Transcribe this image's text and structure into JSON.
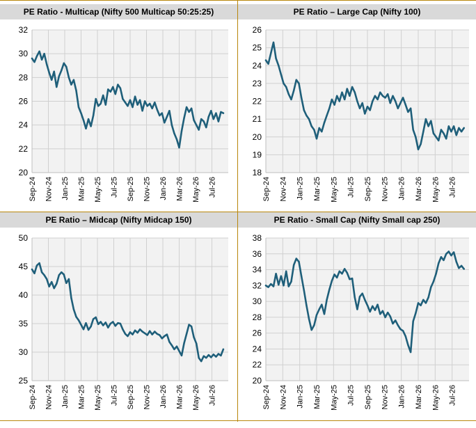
{
  "chart_data": [
    {
      "type": "line",
      "title": "PE Ratio - Multicap (Nifty 500 Multicap 50:25:25)",
      "ylim": [
        20,
        32
      ],
      "yticks": [
        20,
        22,
        24,
        26,
        28,
        30,
        32
      ],
      "xlim": [
        0,
        24
      ],
      "xticks": [
        {
          "pos": 0,
          "label": "Sep-24"
        },
        {
          "pos": 2,
          "label": "Nov-24"
        },
        {
          "pos": 4,
          "label": "Jan-25"
        },
        {
          "pos": 6,
          "label": "Mar-25"
        },
        {
          "pos": 8,
          "label": "May-25"
        },
        {
          "pos": 10,
          "label": "Jul-25"
        },
        {
          "pos": 12,
          "label": "Sep-25"
        },
        {
          "pos": 14,
          "label": "Nov-25"
        },
        {
          "pos": 16,
          "label": "Jan-26"
        },
        {
          "pos": 18,
          "label": "Mar-26"
        },
        {
          "pos": 20,
          "label": "May-26"
        },
        {
          "pos": 22,
          "label": "Jul-26"
        }
      ],
      "grid": true,
      "color": "#1f5f7a",
      "x": [
        0,
        0.3,
        0.6,
        0.9,
        1.2,
        1.5,
        1.8,
        2.1,
        2.4,
        2.7,
        3.0,
        3.3,
        3.6,
        3.9,
        4.2,
        4.5,
        4.8,
        5.1,
        5.4,
        5.7,
        6.0,
        6.3,
        6.6,
        6.9,
        7.2,
        7.5,
        7.8,
        8.1,
        8.4,
        8.7,
        9.0,
        9.3,
        9.6,
        9.9,
        10.2,
        10.5,
        10.8,
        11.1,
        11.4,
        11.7,
        12.0,
        12.3,
        12.6,
        12.9,
        13.2,
        13.5,
        13.8,
        14.1,
        14.4,
        14.7,
        15.0,
        15.3,
        15.6,
        15.9,
        16.2,
        16.5,
        16.8,
        17.1,
        17.4,
        17.7,
        18.0,
        18.3,
        18.6,
        18.9,
        19.2,
        19.5,
        19.8,
        20.1,
        20.4,
        20.7,
        21.0,
        21.3,
        21.6,
        21.9,
        22.2,
        22.5,
        22.8,
        23.1,
        23.4
      ],
      "y": [
        29.6,
        29.3,
        29.8,
        30.2,
        29.5,
        30.0,
        29.1,
        28.4,
        27.8,
        28.5,
        27.2,
        28.1,
        28.6,
        29.2,
        28.9,
        28.0,
        27.4,
        27.8,
        26.9,
        25.5,
        25.0,
        24.4,
        23.7,
        24.5,
        23.9,
        24.8,
        26.2,
        25.6,
        25.8,
        26.5,
        25.7,
        27.0,
        26.8,
        27.2,
        26.6,
        27.4,
        27.1,
        26.2,
        25.9,
        25.6,
        26.1,
        25.5,
        26.4,
        25.7,
        26.1,
        25.2,
        26.0,
        25.6,
        25.8,
        25.4,
        25.9,
        25.3,
        24.8,
        25.0,
        24.2,
        24.7,
        25.2,
        24.0,
        23.3,
        22.8,
        22.1,
        23.5,
        24.6,
        25.5,
        25.1,
        25.4,
        24.4,
        24.0,
        23.6,
        24.5,
        24.3,
        23.8,
        24.7,
        25.2,
        24.5,
        25.0,
        24.3,
        25.1,
        25.0
      ]
    },
    {
      "type": "line",
      "title": "PE Ratio – Large Cap (Nifty 100)",
      "ylim": [
        18,
        26
      ],
      "yticks": [
        18,
        19,
        20,
        21,
        22,
        23,
        24,
        25,
        26
      ],
      "xlim": [
        0,
        24
      ],
      "xticks": [
        {
          "pos": 0,
          "label": "Sep-24"
        },
        {
          "pos": 2,
          "label": "Nov-24"
        },
        {
          "pos": 4,
          "label": "Jan-25"
        },
        {
          "pos": 6,
          "label": "Mar-25"
        },
        {
          "pos": 8,
          "label": "May-25"
        },
        {
          "pos": 10,
          "label": "Jul-25"
        },
        {
          "pos": 12,
          "label": "Sep-25"
        },
        {
          "pos": 14,
          "label": "Nov-25"
        },
        {
          "pos": 16,
          "label": "Jan-26"
        },
        {
          "pos": 18,
          "label": "Mar-26"
        },
        {
          "pos": 20,
          "label": "May-26"
        },
        {
          "pos": 22,
          "label": "Jul-26"
        }
      ],
      "grid": true,
      "color": "#1f5f7a",
      "x": [
        0,
        0.3,
        0.6,
        0.9,
        1.2,
        1.5,
        1.8,
        2.1,
        2.4,
        2.7,
        3.0,
        3.3,
        3.6,
        3.9,
        4.2,
        4.5,
        4.8,
        5.1,
        5.4,
        5.7,
        6.0,
        6.3,
        6.6,
        6.9,
        7.2,
        7.5,
        7.8,
        8.1,
        8.4,
        8.7,
        9.0,
        9.3,
        9.6,
        9.9,
        10.2,
        10.5,
        10.8,
        11.1,
        11.4,
        11.7,
        12.0,
        12.3,
        12.6,
        12.9,
        13.2,
        13.5,
        13.8,
        14.1,
        14.4,
        14.7,
        15.0,
        15.3,
        15.6,
        15.9,
        16.2,
        16.5,
        16.8,
        17.1,
        17.4,
        17.7,
        18.0,
        18.3,
        18.6,
        18.9,
        19.2,
        19.5,
        19.8,
        20.1,
        20.4,
        20.7,
        21.0,
        21.3,
        21.6,
        21.9,
        22.2,
        22.5,
        22.8,
        23.1,
        23.4
      ],
      "y": [
        24.3,
        24.1,
        24.7,
        25.3,
        24.4,
        24.0,
        23.5,
        23.0,
        22.8,
        22.4,
        22.1,
        22.6,
        23.2,
        23.0,
        22.2,
        21.5,
        21.2,
        21.0,
        20.6,
        20.4,
        19.9,
        20.5,
        20.3,
        20.8,
        21.2,
        21.6,
        22.1,
        21.8,
        22.3,
        22.0,
        22.5,
        22.1,
        22.7,
        22.3,
        22.8,
        22.5,
        22.0,
        21.6,
        21.9,
        21.3,
        21.7,
        21.5,
        22.0,
        22.3,
        22.1,
        22.5,
        22.3,
        22.2,
        22.4,
        21.9,
        22.3,
        22.0,
        21.6,
        21.9,
        22.2,
        21.8,
        21.4,
        21.6,
        20.4,
        20.0,
        19.3,
        19.6,
        20.3,
        21.0,
        20.6,
        20.9,
        20.2,
        20.0,
        19.8,
        20.4,
        20.2,
        19.9,
        20.6,
        20.3,
        20.6,
        20.1,
        20.5,
        20.3,
        20.5
      ]
    },
    {
      "type": "line",
      "title": "PE Ratio – Midcap (Nifty Midcap 150)",
      "ylim": [
        25,
        50
      ],
      "yticks": [
        25,
        30,
        35,
        40,
        45,
        50
      ],
      "xlim": [
        0,
        24
      ],
      "xticks": [
        {
          "pos": 0,
          "label": "Sep-24"
        },
        {
          "pos": 2,
          "label": "Nov-24"
        },
        {
          "pos": 4,
          "label": "Jan-25"
        },
        {
          "pos": 6,
          "label": "Mar-25"
        },
        {
          "pos": 8,
          "label": "May-25"
        },
        {
          "pos": 10,
          "label": "Jul-25"
        },
        {
          "pos": 12,
          "label": "Sep-25"
        },
        {
          "pos": 14,
          "label": "Nov-25"
        },
        {
          "pos": 16,
          "label": "Jan-26"
        },
        {
          "pos": 18,
          "label": "Mar-26"
        },
        {
          "pos": 20,
          "label": "May-26"
        },
        {
          "pos": 22,
          "label": "Jul-26"
        }
      ],
      "grid": true,
      "color": "#1f5f7a",
      "x": [
        0,
        0.3,
        0.6,
        0.9,
        1.2,
        1.5,
        1.8,
        2.1,
        2.4,
        2.7,
        3.0,
        3.3,
        3.6,
        3.9,
        4.2,
        4.5,
        4.8,
        5.1,
        5.4,
        5.7,
        6.0,
        6.3,
        6.6,
        6.9,
        7.2,
        7.5,
        7.8,
        8.1,
        8.4,
        8.7,
        9.0,
        9.3,
        9.6,
        9.9,
        10.2,
        10.5,
        10.8,
        11.1,
        11.4,
        11.7,
        12.0,
        12.3,
        12.6,
        12.9,
        13.2,
        13.5,
        13.8,
        14.1,
        14.4,
        14.7,
        15.0,
        15.3,
        15.6,
        15.9,
        16.2,
        16.5,
        16.8,
        17.1,
        17.4,
        17.7,
        18.0,
        18.3,
        18.6,
        18.9,
        19.2,
        19.5,
        19.8,
        20.1,
        20.4,
        20.7,
        21.0,
        21.3,
        21.6,
        21.9,
        22.2,
        22.5,
        22.8,
        23.1,
        23.4
      ],
      "y": [
        44.5,
        43.8,
        45.2,
        45.6,
        44.0,
        43.5,
        42.8,
        41.5,
        42.3,
        41.2,
        42.0,
        43.5,
        44.0,
        43.6,
        42.1,
        42.8,
        39.5,
        37.5,
        36.2,
        35.6,
        34.8,
        34.0,
        35.1,
        33.9,
        34.5,
        35.8,
        36.1,
        34.9,
        35.3,
        34.7,
        35.2,
        34.3,
        35.0,
        35.3,
        34.6,
        35.1,
        35.0,
        34.0,
        33.2,
        32.8,
        33.5,
        33.1,
        33.8,
        33.4,
        34.0,
        33.6,
        33.3,
        33.0,
        33.7,
        33.1,
        33.6,
        33.2,
        33.0,
        32.4,
        32.8,
        33.1,
        31.8,
        31.2,
        30.5,
        31.0,
        30.2,
        29.4,
        31.6,
        33.2,
        34.8,
        34.5,
        32.6,
        31.5,
        29.0,
        28.4,
        29.3,
        29.0,
        29.5,
        29.1,
        29.6,
        29.2,
        29.7,
        29.4,
        30.5
      ]
    },
    {
      "type": "line",
      "title": "PE Ratio - Small Cap (Nifty Small cap 250)",
      "ylim": [
        20,
        38
      ],
      "yticks": [
        20,
        22,
        24,
        26,
        28,
        30,
        32,
        34,
        36,
        38
      ],
      "xlim": [
        0,
        24
      ],
      "xticks": [
        {
          "pos": 0,
          "label": "Sep-24"
        },
        {
          "pos": 2,
          "label": "Nov-24"
        },
        {
          "pos": 4,
          "label": "Jan-25"
        },
        {
          "pos": 6,
          "label": "Mar-25"
        },
        {
          "pos": 8,
          "label": "May-25"
        },
        {
          "pos": 10,
          "label": "Jul-25"
        },
        {
          "pos": 12,
          "label": "Sep-25"
        },
        {
          "pos": 14,
          "label": "Nov-25"
        },
        {
          "pos": 16,
          "label": "Jan-26"
        },
        {
          "pos": 18,
          "label": "Mar-26"
        },
        {
          "pos": 20,
          "label": "May-26"
        },
        {
          "pos": 22,
          "label": "Jul-26"
        }
      ],
      "grid": true,
      "color": "#1f5f7a",
      "x": [
        0,
        0.3,
        0.6,
        0.9,
        1.2,
        1.5,
        1.8,
        2.1,
        2.4,
        2.7,
        3.0,
        3.3,
        3.6,
        3.9,
        4.2,
        4.5,
        4.8,
        5.1,
        5.4,
        5.7,
        6.0,
        6.3,
        6.6,
        6.9,
        7.2,
        7.5,
        7.8,
        8.1,
        8.4,
        8.7,
        9.0,
        9.3,
        9.6,
        9.9,
        10.2,
        10.5,
        10.8,
        11.1,
        11.4,
        11.7,
        12.0,
        12.3,
        12.6,
        12.9,
        13.2,
        13.5,
        13.8,
        14.1,
        14.4,
        14.7,
        15.0,
        15.3,
        15.6,
        15.9,
        16.2,
        16.5,
        16.8,
        17.1,
        17.4,
        17.7,
        18.0,
        18.3,
        18.6,
        18.9,
        19.2,
        19.5,
        19.8,
        20.1,
        20.4,
        20.7,
        21.0,
        21.3,
        21.6,
        21.9,
        22.2,
        22.5,
        22.8,
        23.1,
        23.4
      ],
      "y": [
        32.0,
        31.8,
        32.2,
        31.9,
        33.5,
        32.1,
        33.2,
        32.0,
        33.8,
        31.9,
        32.5,
        34.6,
        35.4,
        35.0,
        33.2,
        31.4,
        29.5,
        27.8,
        26.4,
        27.0,
        28.3,
        29.0,
        29.6,
        28.4,
        30.2,
        31.5,
        32.6,
        33.4,
        33.0,
        33.8,
        33.5,
        34.1,
        33.6,
        32.8,
        32.9,
        30.5,
        29.0,
        30.6,
        31.0,
        30.2,
        29.5,
        28.7,
        29.4,
        28.9,
        29.6,
        28.4,
        28.8,
        28.0,
        28.6,
        28.1,
        27.2,
        27.6,
        27.0,
        26.5,
        26.3,
        25.6,
        24.5,
        23.6,
        27.5,
        28.5,
        29.8,
        29.5,
        30.2,
        29.8,
        30.5,
        31.8,
        32.5,
        33.5,
        34.8,
        35.6,
        35.2,
        36.0,
        36.3,
        35.8,
        36.2,
        35.0,
        34.2,
        34.5,
        34.1
      ]
    }
  ]
}
